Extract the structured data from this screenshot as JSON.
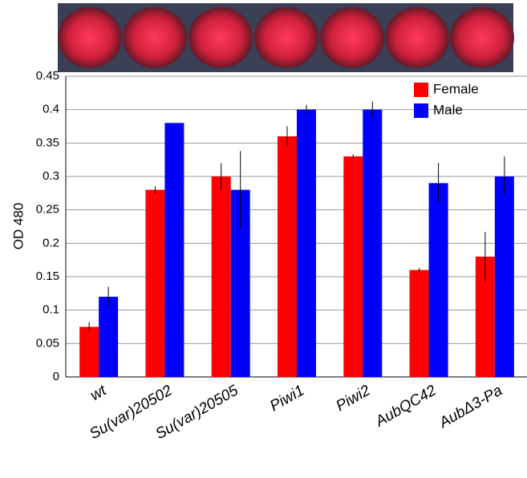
{
  "chart_data": {
    "type": "bar",
    "y_label": "OD 480",
    "categories": [
      "wt",
      "Su(var)20502",
      "Su(var)20505",
      "Piwi1",
      "Piwi2",
      "AubQC42",
      "AubΔ3-Pa"
    ],
    "series": [
      {
        "name": "Female",
        "color": "#ff0000",
        "values": [
          0.075,
          0.28,
          0.3,
          0.36,
          0.33,
          0.16,
          0.18
        ],
        "errors": [
          0.007,
          0.005,
          0.02,
          0.015,
          0.003,
          0.003,
          0.037
        ]
      },
      {
        "name": "Male",
        "color": "#0000ff",
        "values": [
          0.12,
          0.38,
          0.28,
          0.4,
          0.4,
          0.29,
          0.3
        ],
        "errors": [
          0.015,
          null,
          0.058,
          0.007,
          0.012,
          0.03,
          0.03
        ]
      }
    ],
    "ylim": [
      0,
      0.45
    ],
    "yticks": [
      0,
      0.05,
      0.1,
      0.15,
      0.2,
      0.25,
      0.3,
      0.35,
      0.4,
      0.45
    ],
    "grid": true,
    "legend": "top-right"
  }
}
